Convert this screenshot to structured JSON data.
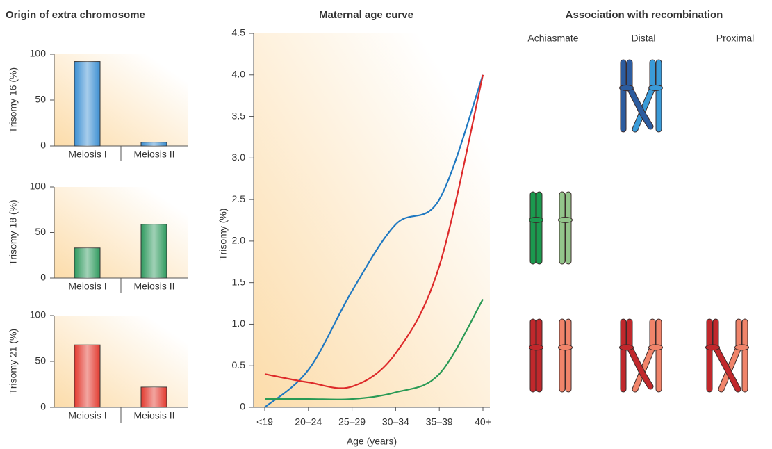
{
  "origin_panel": {
    "title": "Origin of extra chromosome"
  },
  "recombination_panel": {
    "title": "Association with recombination",
    "columns": [
      "Achiasmate",
      "Distal",
      "Proximal"
    ]
  },
  "chart_data": [
    {
      "type": "bar",
      "ylabel": "Trisomy 16 (%)",
      "categories": [
        "Meiosis I",
        "Meiosis II"
      ],
      "values": [
        92,
        4
      ],
      "color": "#3b8fd2",
      "ylim": [
        0,
        100
      ],
      "yticks": [
        0,
        50,
        100
      ]
    },
    {
      "type": "bar",
      "ylabel": "Trisomy 18 (%)",
      "categories": [
        "Meiosis I",
        "Meiosis II"
      ],
      "values": [
        33,
        59
      ],
      "color": "#2f9a5e",
      "ylim": [
        0,
        100
      ],
      "yticks": [
        0,
        50,
        100
      ]
    },
    {
      "type": "bar",
      "ylabel": "Trisomy 21 (%)",
      "categories": [
        "Meiosis I",
        "Meiosis II"
      ],
      "values": [
        68,
        22
      ],
      "color": "#e2392e",
      "ylim": [
        0,
        100
      ],
      "yticks": [
        0,
        50,
        100
      ]
    },
    {
      "type": "line",
      "title": "Maternal age curve",
      "xlabel": "Age (years)",
      "ylabel": "Trisomy (%)",
      "categories": [
        "<19",
        "20–24",
        "25–29",
        "30–34",
        "35–39",
        "40+"
      ],
      "series": [
        {
          "color": "#1f78c1",
          "values": [
            0,
            0.45,
            1.4,
            2.2,
            2.5,
            4.0
          ]
        },
        {
          "color": "#dd2a2a",
          "values": [
            0.4,
            0.3,
            0.25,
            0.65,
            1.7,
            4.0
          ]
        },
        {
          "color": "#2a9a55",
          "values": [
            0.1,
            0.1,
            0.1,
            0.18,
            0.4,
            1.3
          ]
        }
      ],
      "ylim": [
        0,
        4.5
      ],
      "yticks": [
        0,
        0.5,
        {
          "value": 1,
          "label": "1.0"
        },
        1.5,
        {
          "value": 2,
          "label": "2.0"
        },
        2.5,
        {
          "value": 3,
          "label": "3.0"
        },
        3.5,
        {
          "value": 4,
          "label": "4.0"
        },
        4.5
      ]
    }
  ]
}
